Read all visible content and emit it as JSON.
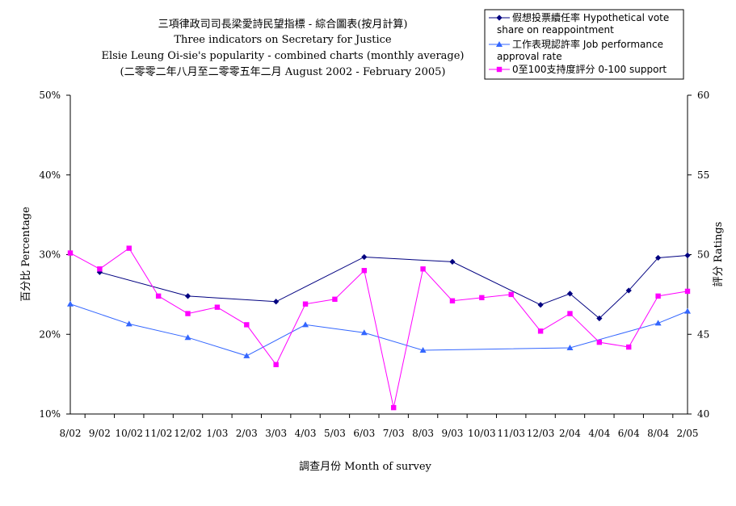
{
  "chart_data": {
    "type": "line",
    "title_lines": [
      "三項律政司司長梁愛詩民望指標 - 綜合圖表(按月計算)",
      "Three indicators on Secretary for Justice",
      "Elsie Leung Oi-sie's popularity - combined charts (monthly average)",
      "(二零零二年八月至二零零五年二月 August 2002 - February 2005)"
    ],
    "xlabel": "調查月份 Month of survey",
    "ylabel_left": "百分比 Percentage",
    "ylabel_right": "評分 Ratings",
    "categories": [
      "8/02",
      "9/02",
      "10/02",
      "11/02",
      "12/02",
      "1/03",
      "2/03",
      "3/03",
      "4/03",
      "5/03",
      "6/03",
      "7/03",
      "8/03",
      "9/03",
      "10/03",
      "11/03",
      "12/03",
      "2/04",
      "4/04",
      "6/04",
      "8/04",
      "2/05"
    ],
    "ylim_left": [
      10,
      50
    ],
    "yticks_left": [
      "10%",
      "20%",
      "30%",
      "40%",
      "50%"
    ],
    "ylim_right": [
      40,
      60
    ],
    "yticks_right": [
      "40",
      "45",
      "50",
      "55",
      "60"
    ],
    "legend_position": "top-right",
    "series": [
      {
        "name": "假想投票續任率 Hypothetical vote share on reappointment",
        "legend_lines": [
          "假想投票續任率 Hypothetical vote",
          "share on reappointment"
        ],
        "axis": "left",
        "marker": "diamond",
        "color": "#000080",
        "values": [
          null,
          27.8,
          null,
          null,
          24.8,
          null,
          null,
          24.1,
          null,
          null,
          29.7,
          null,
          null,
          29.1,
          null,
          null,
          23.7,
          25.1,
          22.0,
          25.5,
          29.6,
          29.9
        ]
      },
      {
        "name": "工作表現認許率 Job performance approval rate",
        "legend_lines": [
          "工作表現認許率 Job performance",
          "approval rate"
        ],
        "axis": "left",
        "marker": "triangle",
        "color": "#3366ff",
        "values": [
          23.8,
          null,
          21.3,
          null,
          19.6,
          null,
          17.3,
          null,
          21.2,
          null,
          20.2,
          null,
          18.0,
          null,
          null,
          null,
          null,
          18.3,
          null,
          null,
          21.4,
          22.9
        ]
      },
      {
        "name": "0至100支持度評分 0-100 support",
        "legend_lines": [
          "0至100支持度評分 0-100 support"
        ],
        "axis": "right",
        "marker": "square",
        "color": "#ff00ff",
        "values": [
          50.1,
          49.1,
          50.4,
          47.4,
          46.3,
          46.7,
          45.6,
          43.1,
          46.9,
          47.2,
          49.0,
          40.4,
          49.1,
          47.1,
          47.3,
          47.5,
          45.2,
          46.3,
          44.5,
          44.2,
          47.4,
          47.7
        ]
      }
    ]
  }
}
